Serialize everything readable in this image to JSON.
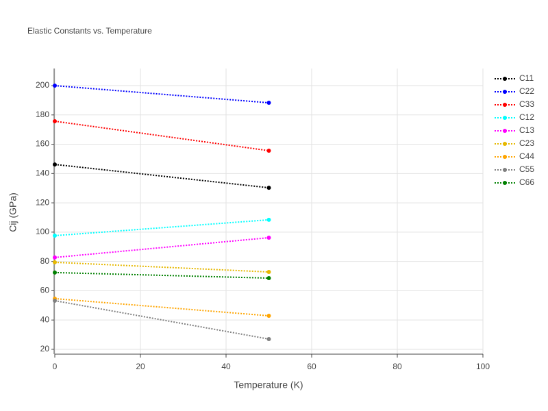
{
  "chart_data": {
    "type": "line",
    "title": "Elastic Constants vs. Temperature",
    "x_label": "Temperature (K)",
    "y_label": "Cij (GPa)",
    "x": [
      0,
      50
    ],
    "series": [
      {
        "name": "C11",
        "color": "#000000",
        "values": [
          146.2,
          130.3
        ]
      },
      {
        "name": "C22",
        "color": "#0000ff",
        "values": [
          200.0,
          188.3
        ]
      },
      {
        "name": "C33",
        "color": "#ff0000",
        "values": [
          175.7,
          155.6
        ]
      },
      {
        "name": "C12",
        "color": "#00ffff",
        "values": [
          97.6,
          108.4
        ]
      },
      {
        "name": "C13",
        "color": "#ff00ff",
        "values": [
          82.7,
          96.2
        ]
      },
      {
        "name": "C23",
        "color": "#e6b800",
        "values": [
          79.4,
          72.8
        ]
      },
      {
        "name": "C44",
        "color": "#ffa500",
        "values": [
          54.6,
          42.9
        ]
      },
      {
        "name": "C55",
        "color": "#808080",
        "values": [
          53.2,
          27.0
        ]
      },
      {
        "name": "C66",
        "color": "#008000",
        "values": [
          72.4,
          68.6
        ]
      }
    ],
    "xlim": [
      0,
      100
    ],
    "xticks": [
      0,
      20,
      40,
      60,
      80,
      100
    ],
    "ylim": [
      16.7,
      211.7
    ],
    "yticks": [
      20,
      40,
      60,
      80,
      100,
      120,
      140,
      160,
      180,
      200
    ],
    "grid": true,
    "legend": "right"
  }
}
